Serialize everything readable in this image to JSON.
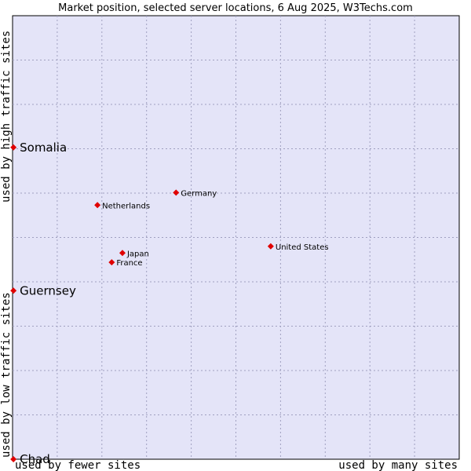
{
  "chart_data": {
    "type": "scatter",
    "title": "Market position, selected server locations, 6 Aug 2025, W3Techs.com",
    "xlabel_low": "used by fewer sites",
    "xlabel_high": "used by many sites",
    "ylabel_low": "used by low traffic sites",
    "ylabel_high": "used by high traffic sites",
    "xlim": [
      0,
      100
    ],
    "ylim": [
      0,
      100
    ],
    "grid": true,
    "colors": {
      "plot_bg": "#e4e4f8",
      "marker": "#e00000",
      "border": "#000000"
    },
    "points": [
      {
        "label": "Somalia",
        "x": 0.2,
        "y": 70.3,
        "emphasis": true
      },
      {
        "label": "Guernsey",
        "x": 0.2,
        "y": 38.0,
        "emphasis": true
      },
      {
        "label": "Chad",
        "x": 0.2,
        "y": 0.0,
        "emphasis": true
      },
      {
        "label": "Germany",
        "x": 36.6,
        "y": 60.1,
        "emphasis": false
      },
      {
        "label": "Netherlands",
        "x": 19.0,
        "y": 57.3,
        "emphasis": false
      },
      {
        "label": "United States",
        "x": 57.8,
        "y": 48.0,
        "emphasis": false
      },
      {
        "label": "Japan",
        "x": 24.6,
        "y": 46.5,
        "emphasis": false
      },
      {
        "label": "France",
        "x": 22.2,
        "y": 44.4,
        "emphasis": false
      }
    ]
  }
}
